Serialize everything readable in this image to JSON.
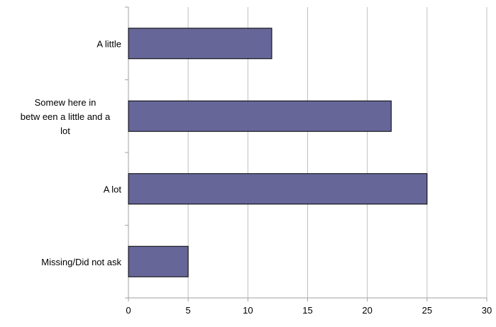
{
  "chart_data": {
    "type": "bar",
    "orientation": "horizontal",
    "categories": [
      "A little",
      "Somew here in betw een a little and a lot",
      "A lot",
      "Missing/Did not ask"
    ],
    "category_label_lines": [
      [
        "A little"
      ],
      [
        "Somew here in",
        "betw een a little and a",
        "lot"
      ],
      [
        "A lot"
      ],
      [
        "Missing/Did not ask"
      ]
    ],
    "values": [
      12,
      22,
      25,
      5
    ],
    "xlim": [
      0,
      30
    ],
    "x_ticks": [
      "0",
      "5",
      "10",
      "15",
      "20",
      "25",
      "30"
    ],
    "title": "",
    "xlabel": "",
    "ylabel": "",
    "grid": "vertical",
    "legend": "none",
    "colors": {
      "bar_fill": "#666699",
      "bar_stroke": "#000000",
      "gridline": "#c0c0c0",
      "axis": "#a0a0a0"
    }
  }
}
